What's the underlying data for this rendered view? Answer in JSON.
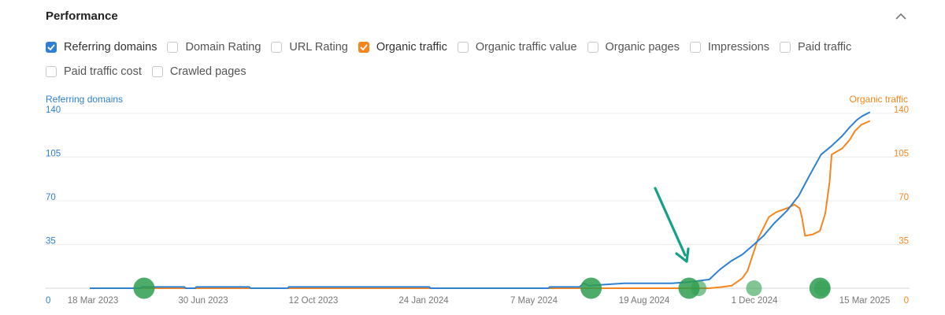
{
  "header": {
    "title": "Performance"
  },
  "options": [
    {
      "label": "Referring domains",
      "checked": true,
      "color": "#2f80d1"
    },
    {
      "label": "Domain Rating",
      "checked": false
    },
    {
      "label": "URL Rating",
      "checked": false
    },
    {
      "label": "Organic traffic",
      "checked": true,
      "color": "#f5861f"
    },
    {
      "label": "Organic traffic value",
      "checked": false
    },
    {
      "label": "Organic pages",
      "checked": false
    },
    {
      "label": "Impressions",
      "checked": false
    },
    {
      "label": "Paid traffic",
      "checked": false
    },
    {
      "label": "Paid traffic cost",
      "checked": false
    },
    {
      "label": "Crawled pages",
      "checked": false
    }
  ],
  "chart": {
    "left_axis_title": "Referring domains",
    "right_axis_title": "Organic traffic",
    "left_color": "#2f80d1",
    "right_color": "#f5861f",
    "marker_color": "#2e9e4f",
    "arrow_color": "#16a085"
  },
  "chart_data": {
    "type": "line",
    "y_ticks": [
      0,
      35,
      70,
      105,
      140
    ],
    "y2_ticks": [
      0,
      35,
      70,
      105,
      140
    ],
    "ylim": [
      0,
      140
    ],
    "y2lim": [
      0,
      140
    ],
    "x_tick_labels": [
      "18 Mar 2023",
      "30 Jun 2023",
      "12 Oct 2023",
      "24 Jan 2024",
      "7 May 2024",
      "19 Aug 2024",
      "1 Dec 2024",
      "15 Mar 2025"
    ],
    "xlim": [
      "2023-03-18",
      "2025-03-15"
    ],
    "grid": true,
    "series": [
      {
        "name": "Referring domains",
        "axis": "left",
        "points": [
          [
            "2023-03-18",
            0
          ],
          [
            "2023-05-05",
            0
          ],
          [
            "2023-05-06",
            1
          ],
          [
            "2023-06-15",
            1
          ],
          [
            "2023-06-16",
            0
          ],
          [
            "2023-06-25",
            0
          ],
          [
            "2023-06-26",
            1
          ],
          [
            "2023-08-15",
            1
          ],
          [
            "2023-08-16",
            0
          ],
          [
            "2023-09-20",
            0
          ],
          [
            "2023-09-21",
            1
          ],
          [
            "2024-01-31",
            1
          ],
          [
            "2024-02-01",
            0
          ],
          [
            "2024-05-22",
            0
          ],
          [
            "2024-05-23",
            1
          ],
          [
            "2024-06-20",
            1
          ],
          [
            "2024-06-24",
            4
          ],
          [
            "2024-06-29",
            2
          ],
          [
            "2024-07-15",
            3
          ],
          [
            "2024-08-01",
            4
          ],
          [
            "2024-09-15",
            4
          ],
          [
            "2024-10-01",
            5
          ],
          [
            "2024-10-20",
            7
          ],
          [
            "2024-10-30",
            15
          ],
          [
            "2024-11-10",
            22
          ],
          [
            "2024-11-20",
            27
          ],
          [
            "2024-12-01",
            35
          ],
          [
            "2024-12-10",
            42
          ],
          [
            "2024-12-20",
            52
          ],
          [
            "2025-01-01",
            62
          ],
          [
            "2025-01-12",
            74
          ],
          [
            "2025-01-22",
            90
          ],
          [
            "2025-02-02",
            107
          ],
          [
            "2025-02-12",
            114
          ],
          [
            "2025-02-22",
            122
          ],
          [
            "2025-03-01",
            129
          ],
          [
            "2025-03-08",
            135
          ],
          [
            "2025-03-13",
            138
          ],
          [
            "2025-03-20",
            141
          ]
        ]
      },
      {
        "name": "Organic traffic",
        "axis": "right",
        "points": [
          [
            "2023-03-18",
            0
          ],
          [
            "2024-10-20",
            0
          ],
          [
            "2024-11-01",
            1
          ],
          [
            "2024-11-10",
            2
          ],
          [
            "2024-11-20",
            8
          ],
          [
            "2024-11-25",
            14
          ],
          [
            "2024-12-05",
            40
          ],
          [
            "2024-12-15",
            57
          ],
          [
            "2024-12-22",
            61
          ],
          [
            "2025-01-01",
            64
          ],
          [
            "2025-01-08",
            67
          ],
          [
            "2025-01-13",
            64
          ],
          [
            "2025-01-15",
            57
          ],
          [
            "2025-01-18",
            42
          ],
          [
            "2025-01-25",
            43
          ],
          [
            "2025-02-01",
            46
          ],
          [
            "2025-02-06",
            60
          ],
          [
            "2025-02-10",
            85
          ],
          [
            "2025-02-12",
            107
          ],
          [
            "2025-02-22",
            112
          ],
          [
            "2025-03-01",
            119
          ],
          [
            "2025-03-06",
            126
          ],
          [
            "2025-03-12",
            131
          ],
          [
            "2025-03-20",
            134
          ]
        ]
      }
    ],
    "markers": [
      {
        "date": "2023-05-08",
        "size": "large",
        "opacity": 0.85
      },
      {
        "date": "2024-07-01",
        "size": "large",
        "opacity": 0.85
      },
      {
        "date": "2024-10-01",
        "size": "large",
        "opacity": 0.85
      },
      {
        "date": "2024-10-10",
        "size": "small",
        "opacity": 0.6
      },
      {
        "date": "2024-12-01",
        "size": "small",
        "opacity": 0.6
      },
      {
        "date": "2025-02-01",
        "size": "large",
        "opacity": 0.85
      },
      {
        "date": "2025-02-03",
        "size": "small",
        "opacity": 0.5
      }
    ]
  }
}
